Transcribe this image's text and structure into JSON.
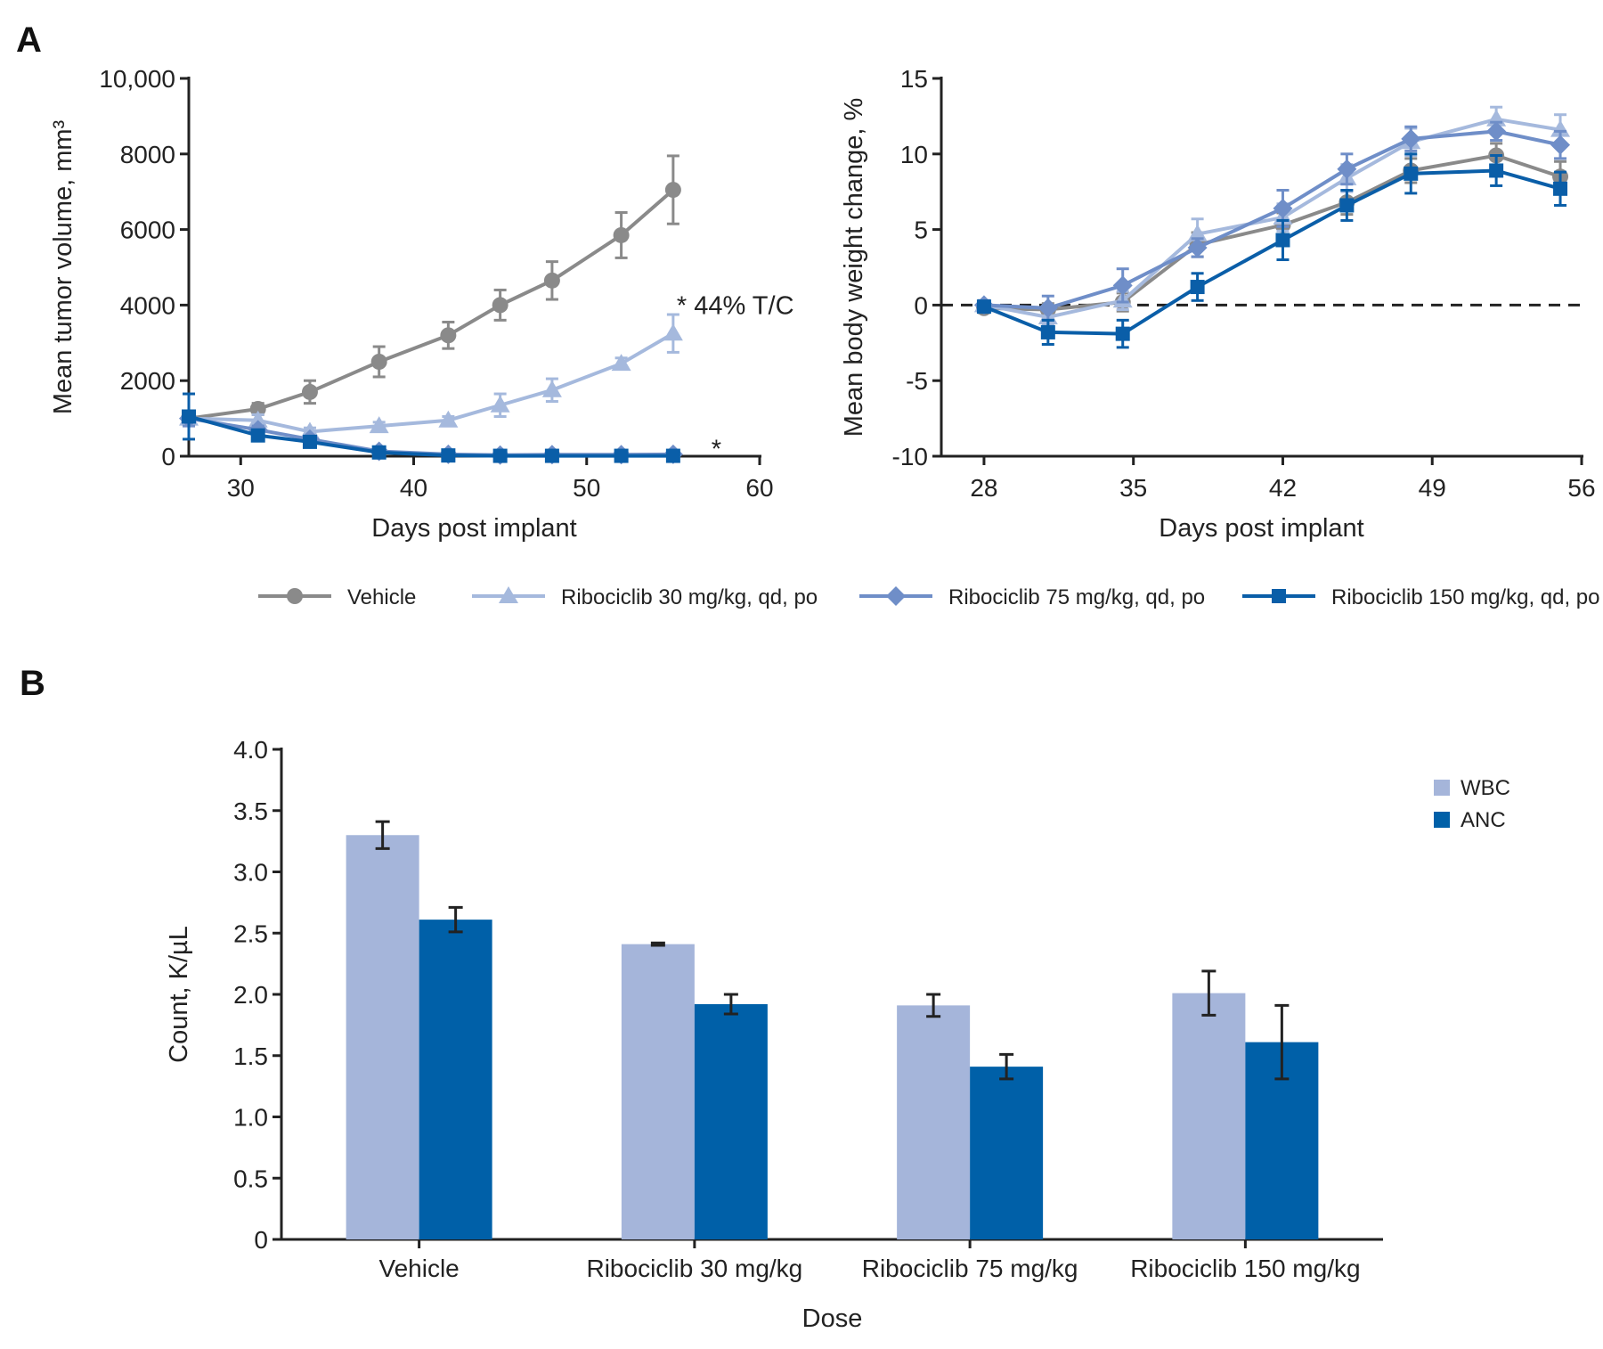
{
  "panel_labels": [
    "A",
    "B"
  ],
  "chart_data": [
    {
      "type": "line",
      "panel": "A",
      "xlabel": "Days post implant",
      "ylabel": "Mean tumor volume, mm³",
      "xlim": [
        27,
        60
      ],
      "ylim": [
        0,
        10000
      ],
      "xticks": [
        30,
        40,
        50,
        60
      ],
      "yticks": [
        0,
        2000,
        4000,
        6000,
        8000,
        10000
      ],
      "ytick_labels": [
        "0",
        "2000",
        "4000",
        "6000",
        "8000",
        "10,000"
      ],
      "grid": false,
      "annotations": [
        {
          "text": "* 44% T/C",
          "x": 55,
          "y": 4000
        },
        {
          "text": "*",
          "x": 57,
          "y": 200
        }
      ],
      "series": [
        {
          "name": "Vehicle",
          "color": "#8a8a8a",
          "marker": "circle",
          "x": [
            27,
            31,
            34,
            38,
            42,
            45,
            48,
            52,
            55
          ],
          "y": [
            1000,
            1250,
            1700,
            2500,
            3200,
            4000,
            4650,
            5850,
            7050
          ],
          "err": [
            150,
            150,
            300,
            400,
            350,
            400,
            500,
            600,
            900
          ]
        },
        {
          "name": "Ribociclib 30 mg/kg, qd, po",
          "color": "#a5b9dd",
          "marker": "triangle",
          "x": [
            27,
            31,
            34,
            38,
            42,
            45,
            48,
            52,
            55
          ],
          "y": [
            1000,
            950,
            650,
            800,
            950,
            1350,
            1750,
            2450,
            3250
          ],
          "err": [
            200,
            150,
            100,
            100,
            100,
            300,
            300,
            150,
            500
          ]
        },
        {
          "name": "Ribociclib 75 mg/kg, qd, po",
          "color": "#6f8ec8",
          "marker": "diamond",
          "x": [
            27,
            31,
            34,
            38,
            42,
            45,
            48,
            52,
            55
          ],
          "y": [
            1000,
            700,
            450,
            130,
            50,
            30,
            40,
            40,
            50
          ],
          "err": [
            200,
            100,
            80,
            50,
            30,
            30,
            40,
            40,
            40
          ]
        },
        {
          "name": "Ribociclib 150 mg/kg, qd, po",
          "color": "#0a5ea8",
          "marker": "square",
          "x": [
            27,
            31,
            34,
            38,
            42,
            45,
            48,
            52,
            55
          ],
          "y": [
            1050,
            550,
            380,
            100,
            20,
            10,
            10,
            10,
            10
          ],
          "err": [
            600,
            100,
            80,
            50,
            20,
            10,
            10,
            10,
            10
          ]
        }
      ]
    },
    {
      "type": "line",
      "panel": "A",
      "xlabel": "Days post implant",
      "ylabel": "Mean body weight change, %",
      "xlim": [
        26,
        56
      ],
      "ylim": [
        -10,
        15
      ],
      "xticks": [
        28,
        35,
        42,
        49,
        56
      ],
      "yticks": [
        -10,
        -5,
        0,
        5,
        10,
        15
      ],
      "ytick_labels": [
        "-10",
        "-5",
        "0",
        "5",
        "10",
        "15"
      ],
      "reference_line": {
        "y": 0,
        "style": "dashed"
      },
      "grid": false,
      "series": [
        {
          "name": "Vehicle",
          "color": "#8a8a8a",
          "marker": "circle",
          "x": [
            28,
            31,
            34.5,
            38,
            42,
            45,
            48,
            52,
            55
          ],
          "y": [
            -0.2,
            -0.3,
            0.2,
            4.0,
            5.3,
            6.8,
            8.9,
            9.9,
            8.5
          ],
          "err": [
            0.3,
            0.4,
            0.6,
            0.8,
            0.8,
            0.8,
            0.8,
            0.8,
            1.0
          ]
        },
        {
          "name": "Ribociclib 30 mg/kg, qd, po",
          "color": "#a5b9dd",
          "marker": "triangle",
          "x": [
            28,
            31,
            34.5,
            38,
            42,
            45,
            48,
            52,
            55
          ],
          "y": [
            0,
            -0.8,
            0.3,
            4.7,
            5.8,
            8.4,
            10.8,
            12.3,
            11.6
          ],
          "err": [
            0.3,
            0.5,
            0.6,
            1.0,
            0.9,
            0.9,
            0.9,
            0.8,
            1.0
          ]
        },
        {
          "name": "Ribociclib 75 mg/kg, qd, po",
          "color": "#6f8ec8",
          "marker": "diamond",
          "x": [
            28,
            31,
            34.5,
            38,
            42,
            45,
            48,
            52,
            55
          ],
          "y": [
            0,
            -0.2,
            1.3,
            3.8,
            6.4,
            9.0,
            11.0,
            11.5,
            10.6
          ],
          "err": [
            0.3,
            0.8,
            1.1,
            0.6,
            1.2,
            1.0,
            0.8,
            0.6,
            0.9
          ]
        },
        {
          "name": "Ribociclib 150 mg/kg, qd, po",
          "color": "#0a5ea8",
          "marker": "square",
          "x": [
            28,
            31,
            34.5,
            38,
            42,
            45,
            48,
            52,
            55
          ],
          "y": [
            -0.1,
            -1.8,
            -1.9,
            1.2,
            4.3,
            6.6,
            8.7,
            8.9,
            7.7
          ],
          "err": [
            0.3,
            0.8,
            0.9,
            0.9,
            1.3,
            1.0,
            1.3,
            1.0,
            1.1
          ]
        }
      ]
    },
    {
      "type": "bar",
      "panel": "B",
      "xlabel": "Dose",
      "ylabel": "Count, K/µL",
      "ylim": [
        0,
        4.0
      ],
      "yticks": [
        0,
        0.5,
        1.0,
        1.5,
        2.0,
        2.5,
        3.0,
        3.5,
        4.0
      ],
      "ytick_labels": [
        "0",
        "0.5",
        "1.0",
        "1.5",
        "2.0",
        "2.5",
        "3.0",
        "3.5",
        "4.0"
      ],
      "categories": [
        "Vehicle",
        "Ribociclib 30 mg/kg",
        "Ribociclib 75 mg/kg",
        "Ribociclib 150 mg/kg"
      ],
      "legend_position": "top-right",
      "grid": false,
      "series": [
        {
          "name": "WBC",
          "color": "#a5b5da",
          "values": [
            3.3,
            2.41,
            1.91,
            2.01
          ],
          "err": [
            0.11,
            0.01,
            0.09,
            0.18
          ]
        },
        {
          "name": "ANC",
          "color": "#0060a8",
          "values": [
            2.61,
            1.92,
            1.41,
            1.61
          ],
          "err": [
            0.1,
            0.08,
            0.1,
            0.3
          ]
        }
      ]
    }
  ]
}
